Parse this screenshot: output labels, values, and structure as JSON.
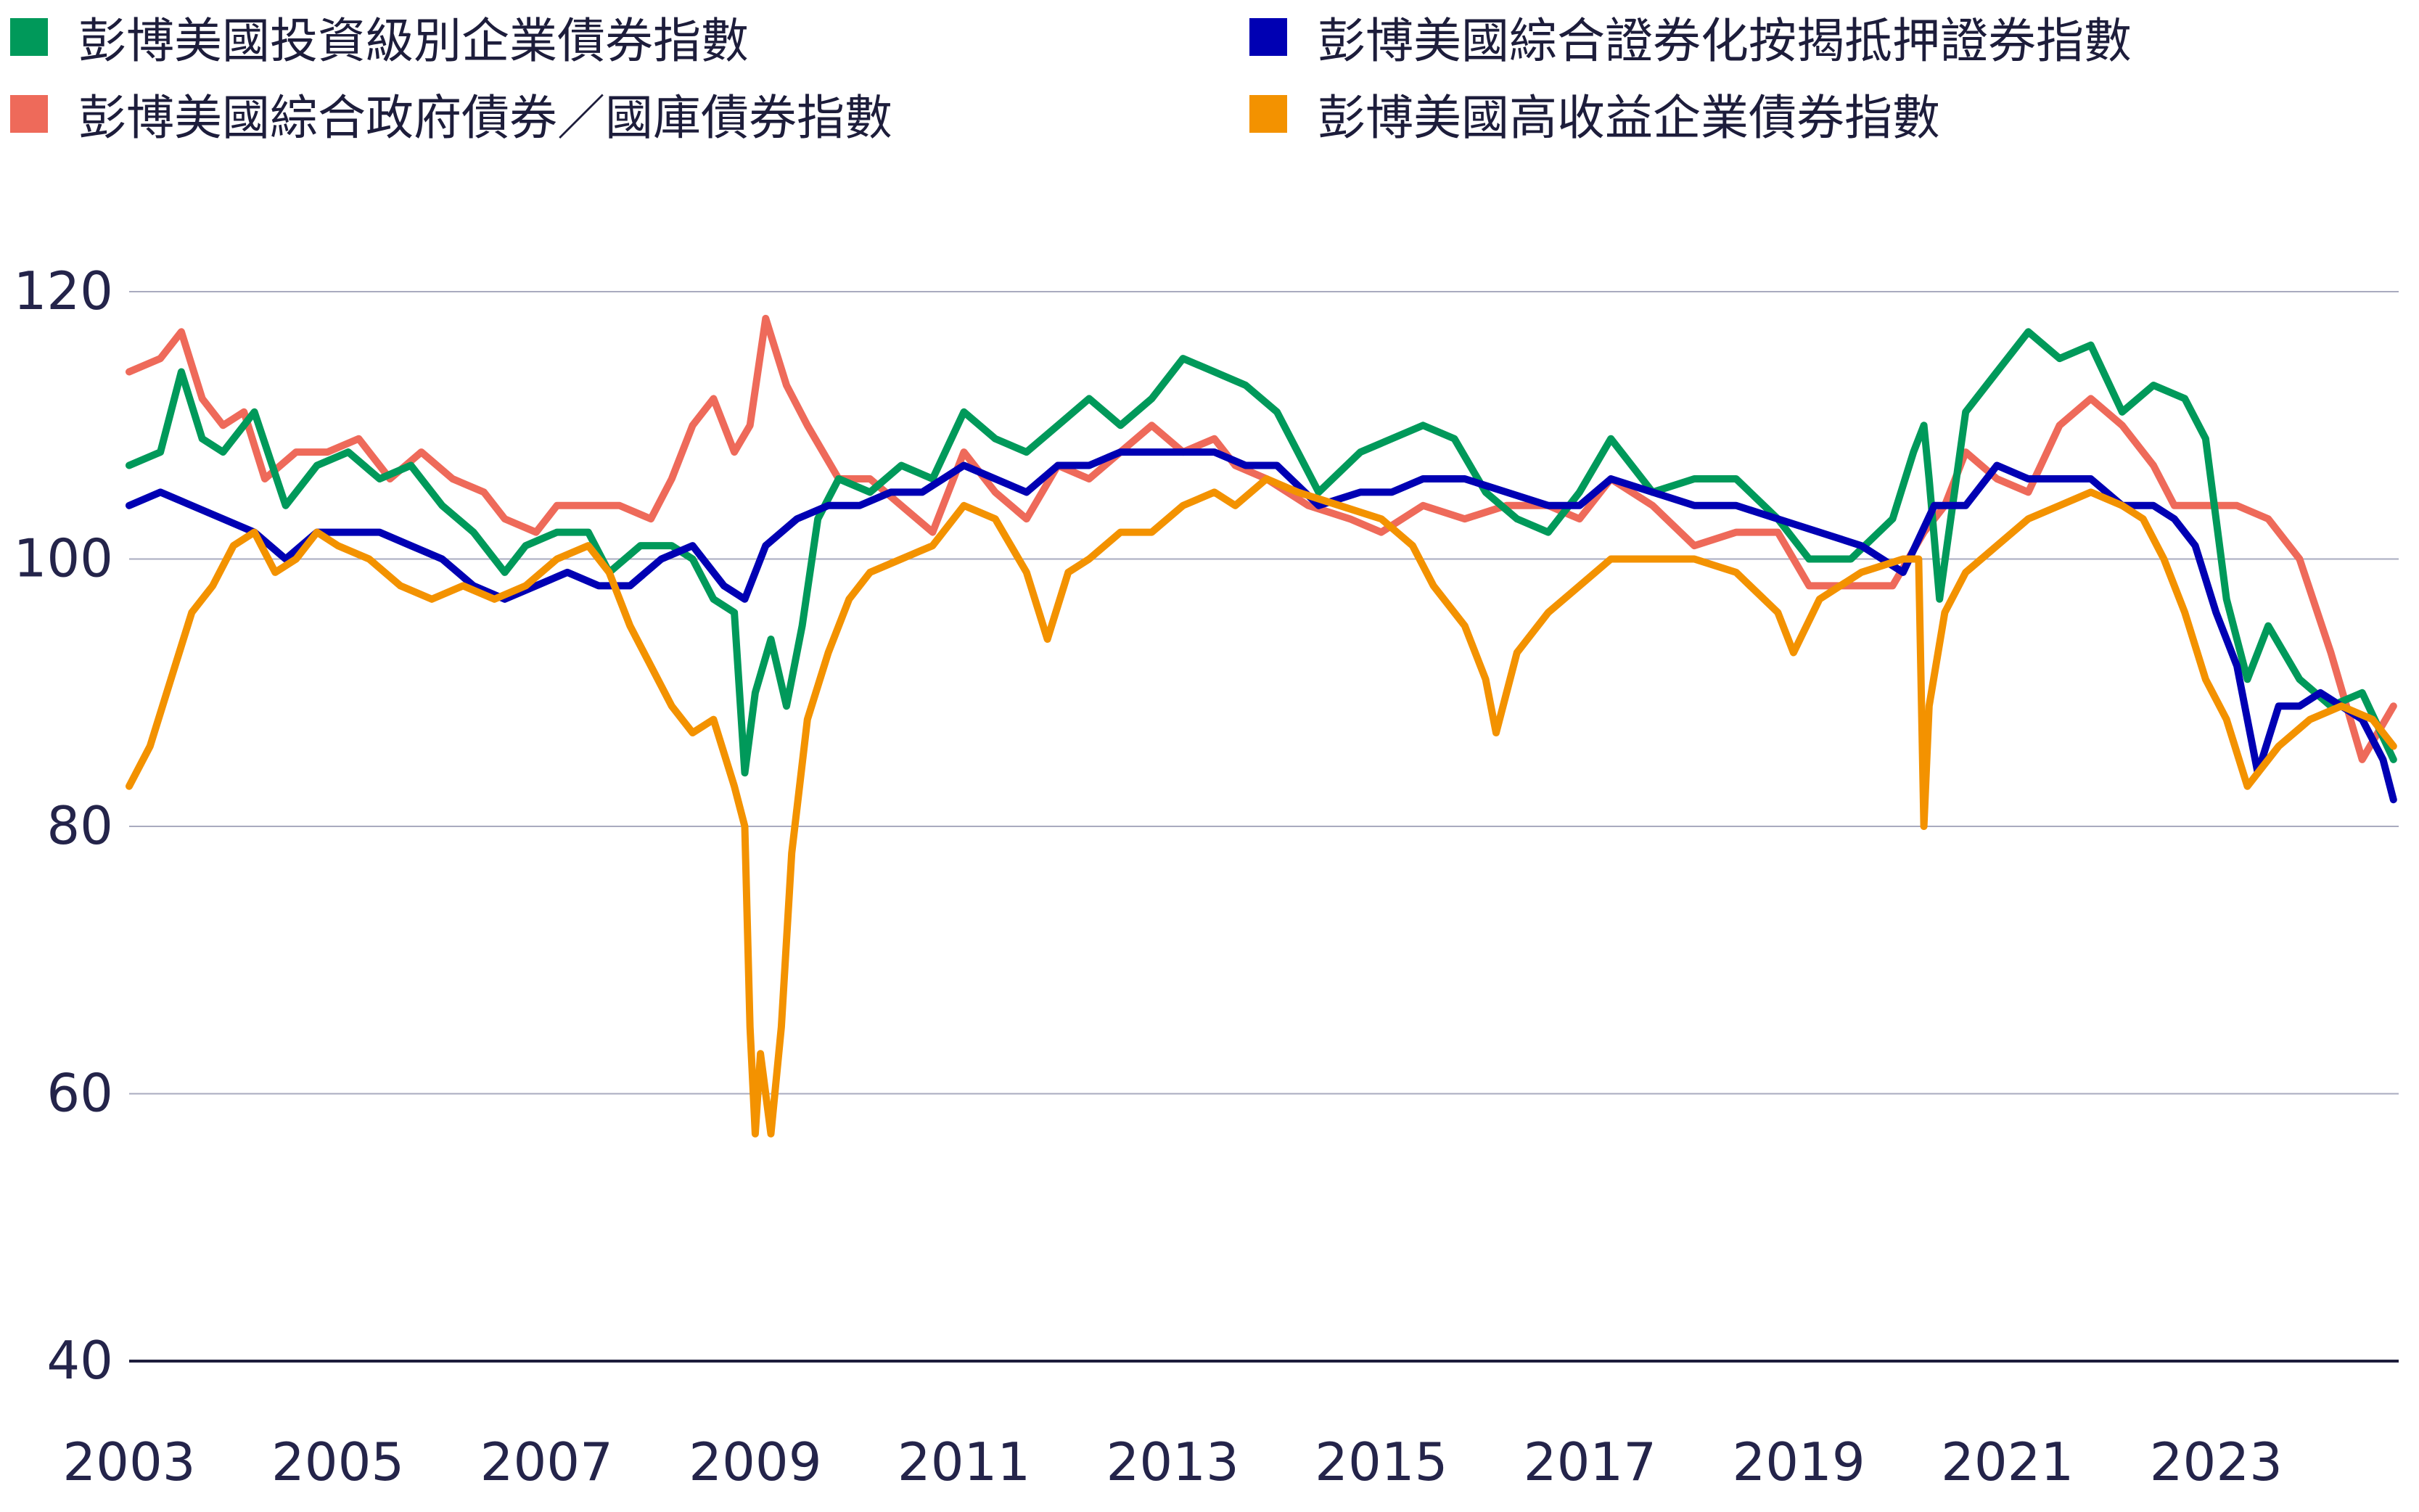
{
  "legend": [
    {
      "label": "彭博美國投資級別企業債券指數",
      "color": "#00995a"
    },
    {
      "label": "彭博美國綜合證券化按揭抵押證券指數",
      "color": "#0000b3"
    },
    {
      "label": "彭博美國綜合政府債券／國庫債券指數",
      "color": "#ee6a5a"
    },
    {
      "label": "彭博美國高收益企業債券指數",
      "color": "#f39200"
    }
  ],
  "chart_data": {
    "type": "line",
    "title": "",
    "xlabel": "",
    "ylabel": "",
    "ylim": [
      40,
      125
    ],
    "xlim": [
      2003.0,
      2024.75
    ],
    "yticks": [
      40,
      60,
      80,
      100,
      120
    ],
    "xticks": [
      "2003",
      "2005",
      "2007",
      "2009",
      "2011",
      "2013",
      "2015",
      "2017",
      "2019",
      "2021",
      "2023"
    ],
    "grid": true,
    "legend_position": "top",
    "series": [
      {
        "name": "彭博美國綜合政府債券／國庫債券指數",
        "color": "#ee6a5a",
        "x": [
          2003.0,
          2003.3,
          2003.5,
          2003.7,
          2003.9,
          2004.1,
          2004.3,
          2004.6,
          2004.9,
          2005.2,
          2005.5,
          2005.8,
          2006.1,
          2006.4,
          2006.6,
          2006.9,
          2007.1,
          2007.4,
          2007.7,
          2008.0,
          2008.2,
          2008.4,
          2008.6,
          2008.8,
          2008.95,
          2009.1,
          2009.3,
          2009.5,
          2009.8,
          2010.1,
          2010.4,
          2010.7,
          2011.0,
          2011.3,
          2011.6,
          2011.9,
          2012.2,
          2012.5,
          2012.8,
          2013.1,
          2013.4,
          2013.6,
          2013.9,
          2014.3,
          2014.7,
          2015.0,
          2015.4,
          2015.8,
          2016.2,
          2016.6,
          2016.9,
          2017.2,
          2017.6,
          2018.0,
          2018.4,
          2018.8,
          2019.1,
          2019.5,
          2019.9,
          2020.2,
          2020.4,
          2020.6,
          2020.9,
          2021.2,
          2021.5,
          2021.8,
          2022.1,
          2022.4,
          2022.6,
          2022.9,
          2023.2,
          2023.5,
          2023.8,
          2024.1,
          2024.4,
          2024.7
        ],
        "y": [
          114,
          115,
          117,
          112,
          110,
          111,
          106,
          108,
          108,
          109,
          106,
          108,
          106,
          105,
          103,
          102,
          104,
          104,
          104,
          103,
          106,
          110,
          112,
          108,
          110,
          118,
          113,
          110,
          106,
          106,
          104,
          102,
          108,
          105,
          103,
          107,
          106,
          108,
          110,
          108,
          109,
          107,
          106,
          104,
          103,
          102,
          104,
          103,
          104,
          104,
          103,
          106,
          104,
          101,
          102,
          102,
          98,
          98,
          98,
          102,
          104,
          108,
          106,
          105,
          110,
          112,
          110,
          107,
          104,
          104,
          104,
          103,
          100,
          93,
          85,
          89
        ]
      },
      {
        "name": "彭博美國投資級別企業債券指數",
        "color": "#00995a",
        "x": [
          2003.0,
          2003.3,
          2003.5,
          2003.7,
          2003.9,
          2004.2,
          2004.5,
          2004.8,
          2005.1,
          2005.4,
          2005.7,
          2006.0,
          2006.3,
          2006.6,
          2006.8,
          2007.1,
          2007.4,
          2007.6,
          2007.9,
          2008.2,
          2008.4,
          2008.6,
          2008.8,
          2008.9,
          2009.0,
          2009.15,
          2009.3,
          2009.45,
          2009.6,
          2009.8,
          2010.1,
          2010.4,
          2010.7,
          2011.0,
          2011.3,
          2011.6,
          2011.9,
          2012.2,
          2012.5,
          2012.8,
          2013.1,
          2013.4,
          2013.7,
          2014.0,
          2014.4,
          2014.8,
          2015.1,
          2015.4,
          2015.7,
          2016.0,
          2016.3,
          2016.6,
          2016.9,
          2017.2,
          2017.6,
          2018.0,
          2018.4,
          2018.8,
          2019.1,
          2019.5,
          2019.9,
          2020.1,
          2020.2,
          2020.25,
          2020.35,
          2020.6,
          2020.9,
          2021.2,
          2021.5,
          2021.8,
          2022.1,
          2022.4,
          2022.7,
          2022.9,
          2023.1,
          2023.3,
          2023.5,
          2023.8,
          2024.1,
          2024.4,
          2024.7
        ],
        "y": [
          107,
          108,
          114,
          109,
          108,
          111,
          104,
          107,
          108,
          106,
          107,
          104,
          102,
          99,
          101,
          102,
          102,
          99,
          101,
          101,
          100,
          97,
          96,
          84,
          90,
          94,
          89,
          95,
          103,
          106,
          105,
          107,
          106,
          111,
          109,
          108,
          110,
          112,
          110,
          112,
          115,
          114,
          113,
          111,
          105,
          108,
          109,
          110,
          109,
          105,
          103,
          102,
          105,
          109,
          105,
          106,
          106,
          103,
          100,
          100,
          103,
          108,
          110,
          106,
          97,
          111,
          114,
          117,
          115,
          116,
          111,
          113,
          112,
          109,
          97,
          91,
          95,
          91,
          89,
          90,
          85
        ]
      },
      {
        "name": "彭博美國綜合證券化按揭抵押證券指數",
        "color": "#0000b3",
        "x": [
          2003.0,
          2003.3,
          2003.6,
          2003.9,
          2004.2,
          2004.5,
          2004.8,
          2005.1,
          2005.4,
          2005.7,
          2006.0,
          2006.3,
          2006.6,
          2006.9,
          2007.2,
          2007.5,
          2007.8,
          2008.1,
          2008.4,
          2008.7,
          2008.9,
          2009.1,
          2009.4,
          2009.7,
          2010.0,
          2010.3,
          2010.6,
          2011.0,
          2011.3,
          2011.6,
          2011.9,
          2012.2,
          2012.5,
          2012.8,
          2013.1,
          2013.4,
          2013.7,
          2014.0,
          2014.4,
          2014.8,
          2015.1,
          2015.4,
          2015.8,
          2016.2,
          2016.6,
          2016.9,
          2017.2,
          2017.6,
          2018.0,
          2018.4,
          2018.8,
          2019.2,
          2019.6,
          2020.0,
          2020.3,
          2020.6,
          2020.9,
          2021.2,
          2021.5,
          2021.8,
          2022.1,
          2022.4,
          2022.6,
          2022.8,
          2023.0,
          2023.2,
          2023.4,
          2023.6,
          2023.8,
          2024.0,
          2024.2,
          2024.4,
          2024.6,
          2024.7
        ],
        "y": [
          104,
          105,
          104,
          103,
          102,
          100,
          102,
          102,
          102,
          101,
          100,
          98,
          97,
          98,
          99,
          98,
          98,
          100,
          101,
          98,
          97,
          101,
          103,
          104,
          104,
          105,
          105,
          107,
          106,
          105,
          107,
          107,
          108,
          108,
          108,
          108,
          107,
          107,
          104,
          105,
          105,
          106,
          106,
          105,
          104,
          104,
          106,
          105,
          104,
          104,
          103,
          102,
          101,
          99,
          104,
          104,
          107,
          106,
          106,
          106,
          104,
          104,
          103,
          101,
          96,
          92,
          84,
          89,
          89,
          90,
          89,
          88,
          85,
          82
        ]
      },
      {
        "name": "彭博美國高收益企業債券指數",
        "color": "#f39200",
        "x": [
          2003.0,
          2003.2,
          2003.4,
          2003.6,
          2003.8,
          2004.0,
          2004.2,
          2004.4,
          2004.6,
          2004.8,
          2005.0,
          2005.3,
          2005.6,
          2005.9,
          2006.2,
          2006.5,
          2006.8,
          2007.1,
          2007.4,
          2007.6,
          2007.8,
          2008.0,
          2008.2,
          2008.4,
          2008.6,
          2008.8,
          2008.9,
          2008.95,
          2009.0,
          2009.05,
          2009.15,
          2009.25,
          2009.35,
          2009.5,
          2009.7,
          2009.9,
          2010.1,
          2010.4,
          2010.7,
          2011.0,
          2011.3,
          2011.6,
          2011.8,
          2012.0,
          2012.2,
          2012.5,
          2012.8,
          2013.1,
          2013.4,
          2013.6,
          2013.9,
          2014.2,
          2014.6,
          2015.0,
          2015.3,
          2015.5,
          2015.8,
          2016.0,
          2016.1,
          2016.3,
          2016.6,
          2016.9,
          2017.2,
          2017.6,
          2018.0,
          2018.4,
          2018.8,
          2018.95,
          2019.2,
          2019.6,
          2020.0,
          2020.15,
          2020.2,
          2020.25,
          2020.4,
          2020.6,
          2020.9,
          2021.2,
          2021.5,
          2021.8,
          2022.1,
          2022.3,
          2022.5,
          2022.7,
          2022.9,
          2023.1,
          2023.3,
          2023.6,
          2023.9,
          2024.2,
          2024.5,
          2024.7
        ],
        "y": [
          83,
          86,
          91,
          96,
          98,
          101,
          102,
          99,
          100,
          102,
          101,
          100,
          98,
          97,
          98,
          97,
          98,
          100,
          101,
          99,
          95,
          92,
          89,
          87,
          88,
          83,
          80,
          65,
          57,
          63,
          57,
          65,
          78,
          88,
          93,
          97,
          99,
          100,
          101,
          104,
          103,
          99,
          94,
          99,
          100,
          102,
          102,
          104,
          105,
          104,
          106,
          105,
          104,
          103,
          101,
          98,
          95,
          91,
          87,
          93,
          96,
          98,
          100,
          100,
          100,
          99,
          96,
          93,
          97,
          99,
          100,
          100,
          80,
          89,
          96,
          99,
          101,
          103,
          104,
          105,
          104,
          103,
          100,
          96,
          91,
          88,
          83,
          86,
          88,
          89,
          88,
          86
        ]
      }
    ]
  }
}
